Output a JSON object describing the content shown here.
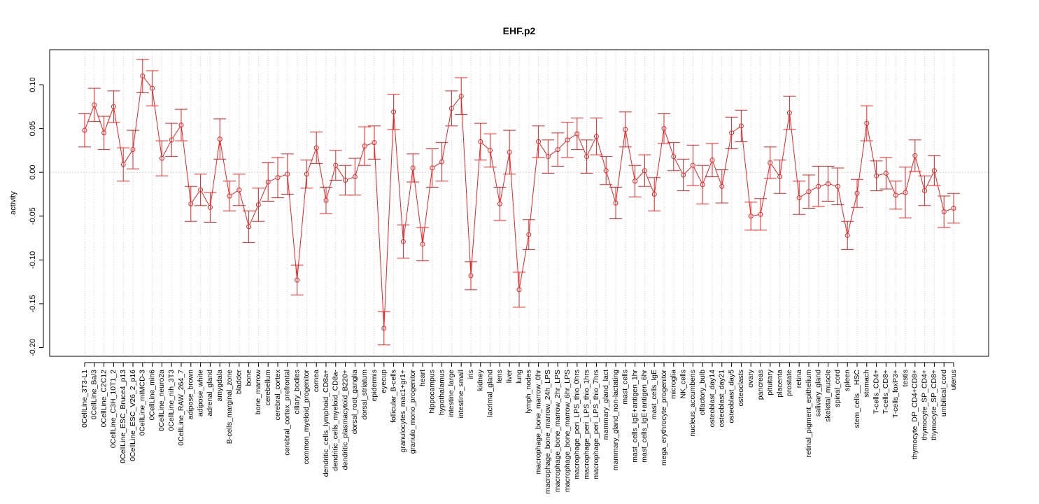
{
  "chart_data": {
    "type": "line",
    "title": "EHF.p2",
    "xlabel": "",
    "ylabel": "activity",
    "ylim": [
      -0.21,
      0.14
    ],
    "yticks": [
      -0.2,
      -0.15,
      -0.1,
      -0.05,
      0.0,
      0.05,
      0.1
    ],
    "ytick_labels": [
      "-0.20",
      "-0.15",
      "-0.10",
      "-0.05",
      "0.00",
      "0.05",
      "0.10"
    ],
    "grid": true,
    "zero_line": true,
    "colors": {
      "series": "#ee2222",
      "grid": "#d3d3d3",
      "axis": "#000000"
    },
    "categories": [
      "0CellLine_3T3-L1",
      "0CellLine_Ba/3",
      "0CellLine_C2C12",
      "0CellLine_C3H_10T1_2",
      "0CellLine_ESC_Bruce4_p13",
      "0CellLine_ESC_V26_2_p16",
      "0CellLine_mIMCD-3",
      "0CellLine_min6",
      "0CellLine_neuro2a",
      "0CellLine_nih_3T3",
      "0CellLine_RAW_264_7",
      "adipose_brown",
      "adipose_white",
      "adrenal_gland",
      "amygdala",
      "B-cells_marginal_zone",
      "bladder",
      "bone",
      "bone_marrow",
      "cerebellum",
      "cerebral_cortex",
      "cerebral_cortex_prefrontal",
      "ciliary_bodies",
      "common_myeloid_progenitor",
      "cornea",
      "dendritic_cells_lymphoid_CD8a+",
      "dendritic_cells_myeloid_CD8a-",
      "dendritic_plasmacytoid_B220+",
      "dorsal_root_ganglia",
      "dorsal_striatum",
      "epidermis",
      "eyecup",
      "follicular_B-cells",
      "granulocytes_mac1+gr1+",
      "granulo_mono_progenitor",
      "heart",
      "hippocampus",
      "hypothalamus",
      "intestine_large",
      "intestine_small",
      "iris",
      "kidney",
      "lacrimal_gland",
      "lens",
      "liver",
      "lung",
      "lymph_nodes",
      "macrophage_bone_marrow_0hr",
      "macrophage_bone_marrow_24h_LPS",
      "macrophage_bone_marrow_2hr_LPS",
      "macrophage_bone_marrow_6hr_LPS",
      "macrophage_peri_LPS_thio_0hrs",
      "macrophage_peri_LPS_thio_1hrs",
      "macrophage_peri_LPS_thio_7hrs",
      "mammary_gland_lact",
      "mammary_gland_non-lactating",
      "mast_cells",
      "mast_cells_IgE+antigen_1hr",
      "mast_cells_IgE+antigen_6hr",
      "mast_cells_IgE",
      "mega_erythrocyte_progenitor",
      "microglia",
      "NK_cells",
      "nucleus_accumbens",
      "olfactory_bulb",
      "osteoblast_day14",
      "osteoblast_day21",
      "osteoblast_day5",
      "osteoclasts",
      "ovary",
      "pancreas",
      "pituitary",
      "placenta",
      "prostate",
      "retina",
      "retinal_pigment_epithelium",
      "salivary_gland",
      "skeletal_muscle",
      "spinal_cord",
      "spleen",
      "stem_cells__HSC",
      "stomach",
      "T-cells_CD4+",
      "T-cells_CD8+",
      "T-cells_foxP3+",
      "testis",
      "thymocyte_DP_CD4+CD8+",
      "thymocyte_SP_CD4+",
      "thymocyte_SP_CD8+",
      "umbilical_cord",
      "uterus"
    ],
    "series": [
      {
        "values": [
          0.048,
          0.077,
          0.045,
          0.075,
          0.009,
          0.026,
          0.11,
          0.096,
          0.016,
          0.037,
          0.054,
          -0.036,
          -0.02,
          -0.04,
          0.038,
          -0.027,
          -0.02,
          -0.062,
          -0.037,
          -0.011,
          -0.006,
          -0.002,
          -0.123,
          -0.002,
          0.028,
          -0.032,
          0.008,
          -0.009,
          -0.005,
          0.03,
          0.034,
          -0.178,
          0.069,
          -0.079,
          0.005,
          -0.082,
          0.005,
          0.012,
          0.073,
          0.087,
          -0.118,
          0.035,
          0.025,
          -0.036,
          0.023,
          -0.134,
          -0.071,
          0.035,
          0.018,
          0.026,
          0.037,
          0.044,
          0.018,
          0.041,
          0.002,
          -0.035,
          0.049,
          -0.01,
          0.002,
          -0.025,
          0.05,
          0.018,
          -0.003,
          0.008,
          -0.014,
          0.014,
          -0.016,
          0.045,
          0.053,
          -0.05,
          -0.048,
          0.011,
          -0.005,
          0.068,
          -0.029,
          -0.022,
          -0.016,
          -0.013,
          -0.016,
          -0.072,
          -0.024,
          0.056,
          -0.004,
          -0.001,
          -0.026,
          -0.023,
          0.019,
          -0.021,
          0.002,
          -0.045,
          -0.041
        ],
        "errors": [
          0.019,
          0.019,
          0.019,
          0.018,
          0.019,
          0.022,
          0.019,
          0.02,
          0.02,
          0.019,
          0.018,
          0.02,
          0.018,
          0.017,
          0.023,
          0.017,
          0.018,
          0.018,
          0.019,
          0.022,
          0.023,
          0.023,
          0.017,
          0.016,
          0.018,
          0.015,
          0.017,
          0.017,
          0.021,
          0.022,
          0.019,
          0.019,
          0.02,
          0.019,
          0.016,
          0.019,
          0.022,
          0.022,
          0.02,
          0.021,
          0.016,
          0.021,
          0.019,
          0.019,
          0.025,
          0.02,
          0.017,
          0.018,
          0.019,
          0.019,
          0.02,
          0.018,
          0.019,
          0.021,
          0.016,
          0.018,
          0.02,
          0.018,
          0.018,
          0.019,
          0.017,
          0.016,
          0.018,
          0.023,
          0.022,
          0.019,
          0.019,
          0.018,
          0.018,
          0.016,
          0.018,
          0.018,
          0.019,
          0.019,
          0.019,
          0.019,
          0.023,
          0.02,
          0.021,
          0.016,
          0.016,
          0.02,
          0.017,
          0.018,
          0.016,
          0.029,
          0.018,
          0.017,
          0.017,
          0.018,
          0.017
        ]
      }
    ]
  }
}
